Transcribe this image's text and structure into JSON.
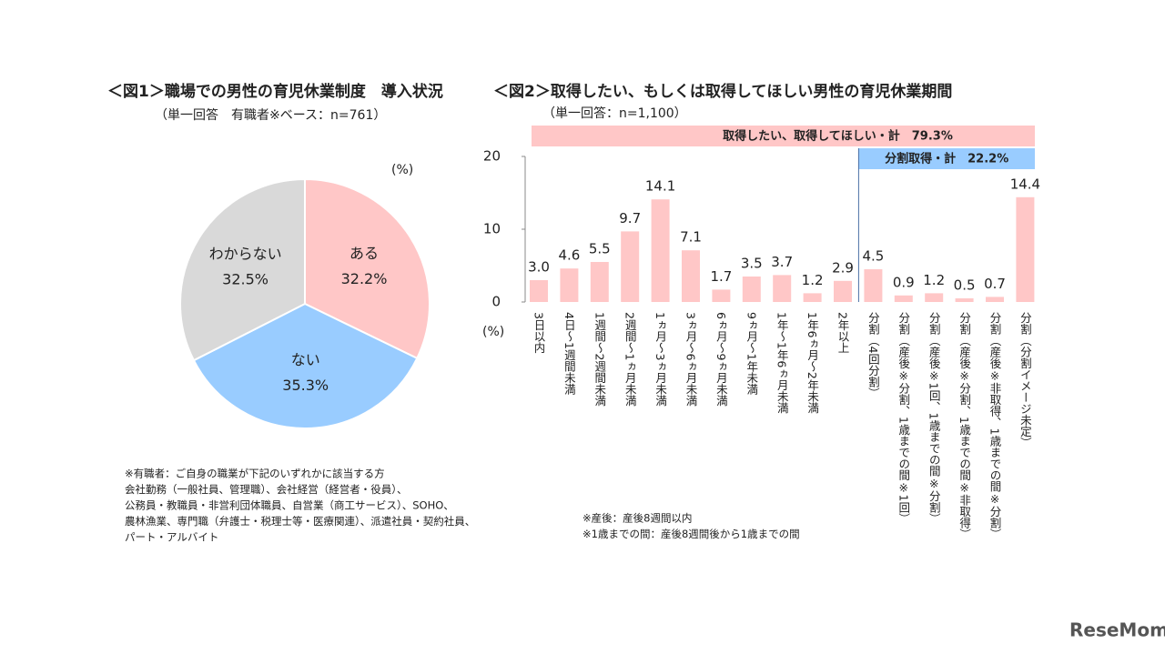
{
  "chart_data": [
    {
      "type": "pie",
      "title": "＜図1＞職場での男性の育児休業制度　導入状況",
      "subtitle": "（単一回答　有職者※ベース：n=761）",
      "unit_label": "(%)",
      "categories": [
        "ある",
        "ない",
        "わからない"
      ],
      "values": [
        32.2,
        35.3,
        32.5
      ],
      "value_labels": [
        "32.2%",
        "35.3%",
        "32.5%"
      ],
      "colors": [
        "#ffc7c7",
        "#99ccff",
        "#d9d9d9"
      ]
    },
    {
      "type": "bar",
      "title": "＜図2＞取得したい、もしくは取得してほしい男性の育児休業期間",
      "subtitle": "（単一回答：n=1,100）",
      "y_label": "(%)",
      "annotations": [
        "取得したい、取得してほしい・計　79.3%",
        "分割取得・計　22.2%"
      ],
      "annotation_colors": [
        "#ffc7c7",
        "#99ccff"
      ],
      "categories": [
        "3日以内",
        "4日～1週間未満",
        "1週間～2週間未満",
        "2週間～1ヵ月未満",
        "1ヵ月～3ヵ月未満",
        "3ヵ月～6ヵ月未満",
        "6ヵ月～9ヵ月未満",
        "9ヵ月～1年未満",
        "1年～1年6ヵ月未満",
        "1年6ヵ月～2年未満",
        "2年以上",
        "分割（4回分割）",
        "分割（産後※分割、1歳までの間※1回）",
        "分割（産後※1回、1歳までの間※分割）",
        "分割（産後※分割、1歳までの間※非取得）",
        "分割（産後※非取得、1歳までの間※分割）",
        "分割（分割イメージ未定）"
      ],
      "values": [
        3.0,
        4.6,
        5.5,
        9.7,
        14.1,
        7.1,
        1.7,
        3.5,
        3.7,
        1.2,
        2.9,
        4.5,
        0.9,
        1.2,
        0.5,
        0.7,
        14.4
      ],
      "value_labels": [
        "3.0",
        "4.6",
        "5.5",
        "9.7",
        "14.1",
        "7.1",
        "1.7",
        "3.5",
        "3.7",
        "1.2",
        "2.9",
        "4.5",
        "0.9",
        "1.2",
        "0.5",
        "0.7",
        "14.4"
      ],
      "color": "#ffc7c7",
      "ylim": [
        0,
        20
      ],
      "yticks": [
        0,
        10,
        20
      ]
    }
  ],
  "notes_left": [
    "※有職者：ご自身の職業が下記のいずれかに該当する方",
    "会社勤務（一般社員、管理職）、会社経営（経営者・役員）、",
    "公務員・教職員・非営利団体職員、自営業（商工サービス）、SOHO、",
    "農林漁業、専門職（弁護士・税理士等・医療関連）、派遣社員・契約社員、",
    "パート・アルバイト"
  ],
  "notes_right": [
    "※産後：産後8週間以内",
    "※1歳までの間：産後8週間後から1歳までの間"
  ],
  "logo": "ReseMom"
}
